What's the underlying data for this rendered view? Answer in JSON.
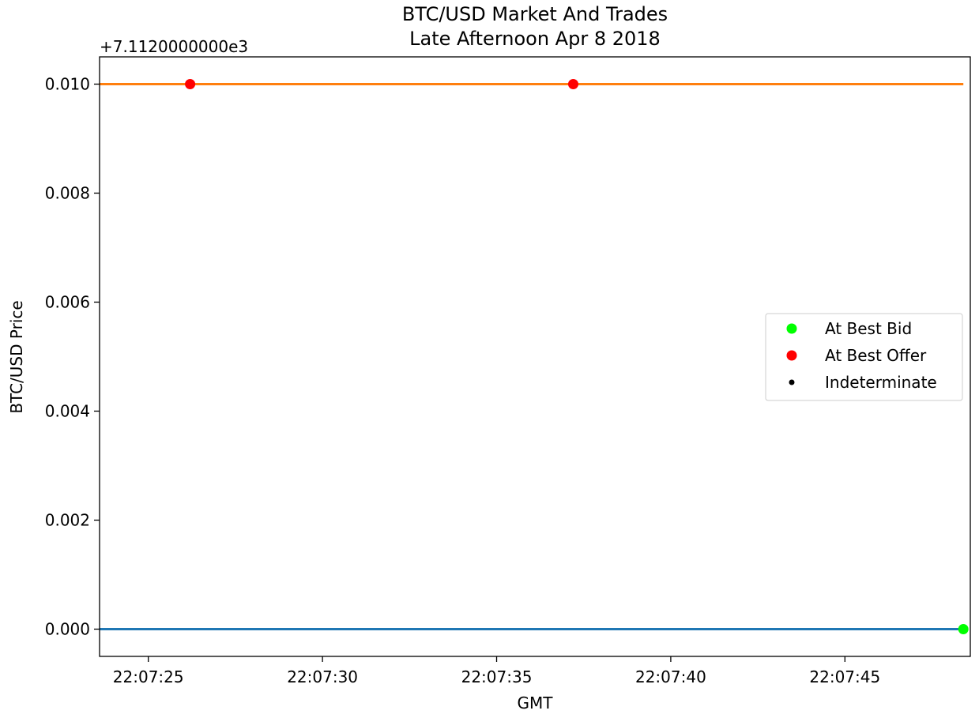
{
  "chart_data": {
    "type": "line",
    "title": "BTC/USD Market And Trades",
    "subtitle": "Late Afternoon Apr 8 2018",
    "xlabel": "GMT",
    "ylabel": "BTC/USD Price",
    "offset_text": "+7.1120000000e3",
    "xlim": [
      "22:07:23.6",
      "22:07:48.6"
    ],
    "ylim": [
      -0.0005,
      0.0105
    ],
    "y_offset": 7112.0,
    "x_ticks": [
      "22:07:25",
      "22:07:30",
      "22:07:35",
      "22:07:40",
      "22:07:45"
    ],
    "y_ticks": [
      0.0,
      0.002,
      0.004,
      0.006,
      0.008,
      0.01
    ],
    "y_tick_labels": [
      "0.000",
      "0.002",
      "0.004",
      "0.006",
      "0.008",
      "0.010"
    ],
    "grid": false,
    "legend_position": "center-right",
    "series": [
      {
        "kind": "line",
        "color": "#1f77b4",
        "x": [
          "22:07:23.6",
          "22:07:48.4"
        ],
        "y": [
          0.0,
          0.0
        ]
      },
      {
        "kind": "line",
        "color": "#ff7f0e",
        "x": [
          "22:07:23.6",
          "22:07:48.4"
        ],
        "y": [
          0.01,
          0.01
        ]
      },
      {
        "kind": "scatter",
        "name": "At Best Bid",
        "color": "#00ff00",
        "x": [
          "22:07:48.4"
        ],
        "y": [
          0.0
        ]
      },
      {
        "kind": "scatter",
        "name": "At Best Offer",
        "color": "#ff0000",
        "x": [
          "22:07:26.2",
          "22:07:37.2"
        ],
        "y": [
          0.01,
          0.01
        ]
      },
      {
        "kind": "scatter",
        "name": "Indeterminate",
        "color": "#000000",
        "x": [],
        "y": []
      }
    ]
  }
}
